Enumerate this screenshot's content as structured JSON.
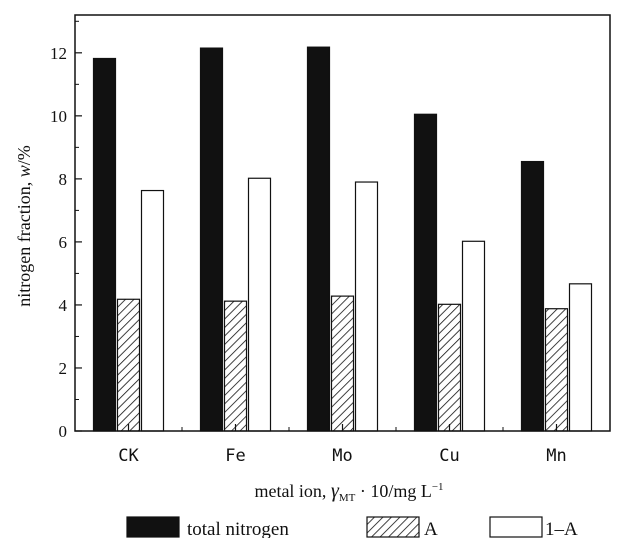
{
  "chart_data": {
    "type": "bar",
    "categories": [
      "CK",
      "Fe",
      "Mo",
      "Cu",
      "Mn"
    ],
    "series": [
      {
        "name": "total nitrogen",
        "values": [
          11.82,
          12.15,
          12.18,
          10.05,
          8.55
        ],
        "fill": "solid"
      },
      {
        "name": "A",
        "values": [
          4.18,
          4.12,
          4.28,
          4.02,
          3.88
        ],
        "fill": "hatch"
      },
      {
        "name": "1–A",
        "values": [
          7.63,
          8.02,
          7.9,
          6.02,
          4.67
        ],
        "fill": "open"
      }
    ],
    "xlabel_parts": {
      "pre": "metal ion, ",
      "symbol": "γ",
      "subscript": "MT",
      "post": " · 10/mg L",
      "sup": "−1"
    },
    "ylabel_parts": {
      "pre": "nitrogen fraction, ",
      "symbol": "w",
      "post": "/%"
    },
    "yticks": [
      "0",
      "2",
      "4",
      "6",
      "8",
      "10",
      "12"
    ],
    "ylim": [
      0,
      13.2
    ],
    "grid": false,
    "legend_position": "bottom",
    "colors": {
      "solid": "#111111",
      "outline": "#111111",
      "open_fill": "#ffffff"
    }
  }
}
